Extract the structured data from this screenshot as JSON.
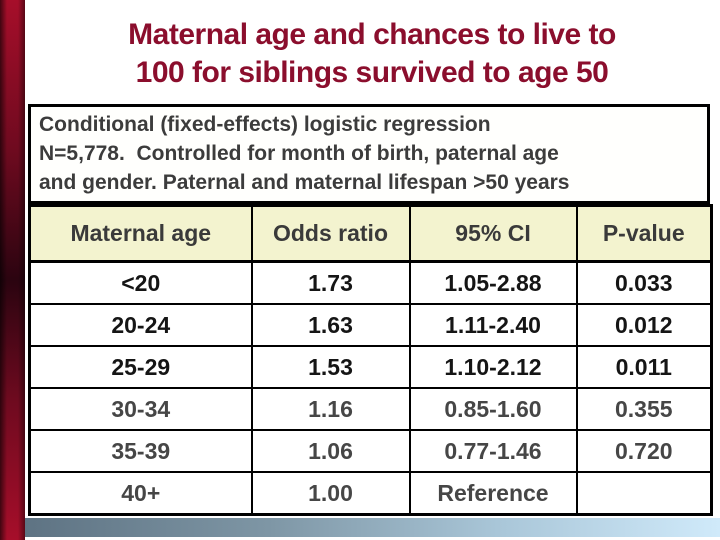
{
  "slide": {
    "title_lines": [
      "Maternal age and chances to live to",
      "100 for siblings survived to age 50"
    ],
    "note_lines": [
      "Conditional (fixed-effects) logistic regression",
      "N=5,778.  Controlled for month of birth, paternal age",
      "and gender. Paternal and maternal lifespan >50 years"
    ]
  },
  "table": {
    "headers": [
      "Maternal age",
      "Odds ratio",
      "95% CI",
      "P-value"
    ],
    "rows": [
      {
        "cells": [
          "<20",
          "1.73",
          "1.05-2.88",
          "0.033"
        ],
        "emphasis": "strong"
      },
      {
        "cells": [
          "20-24",
          "1.63",
          "1.11-2.40",
          "0.012"
        ],
        "emphasis": "strong"
      },
      {
        "cells": [
          "25-29",
          "1.53",
          "1.10-2.12",
          "0.011"
        ],
        "emphasis": "strong"
      },
      {
        "cells": [
          "30-34",
          "1.16",
          "0.85-1.60",
          "0.355"
        ],
        "emphasis": "muted"
      },
      {
        "cells": [
          "35-39",
          "1.06",
          "0.77-1.46",
          "0.720"
        ],
        "emphasis": "muted"
      },
      {
        "cells": [
          "40+",
          "1.00",
          "Reference",
          ""
        ],
        "emphasis": "muted"
      }
    ]
  },
  "chart_data": {
    "type": "table",
    "title": "Maternal age and chances to live to 100 for siblings survived to age 50",
    "note": "Conditional (fixed-effects) logistic regression N=5,778. Controlled for month of birth, paternal age and gender. Paternal and maternal lifespan >50 years",
    "columns": [
      "Maternal age",
      "Odds ratio",
      "95% CI",
      "P-value"
    ],
    "rows": [
      [
        "<20",
        "1.73",
        "1.05-2.88",
        "0.033"
      ],
      [
        "20-24",
        "1.63",
        "1.11-2.40",
        "0.012"
      ],
      [
        "25-29",
        "1.53",
        "1.10-2.12",
        "0.011"
      ],
      [
        "30-34",
        "1.16",
        "0.85-1.60",
        "0.355"
      ],
      [
        "35-39",
        "1.06",
        "0.77-1.46",
        "0.720"
      ],
      [
        "40+",
        "1.00",
        "Reference",
        ""
      ]
    ]
  },
  "colors": {
    "title_text": "#8b0e2d",
    "accent_bar_bright": "#a60e2a",
    "accent_bar_dark": "#2b0410",
    "header_bg": "#f3f3cf",
    "row_text_strong": "#151515",
    "row_text_muted": "#464646",
    "footer_gradient_left": "#5e7383",
    "footer_gradient_right": "#d0eafa"
  }
}
